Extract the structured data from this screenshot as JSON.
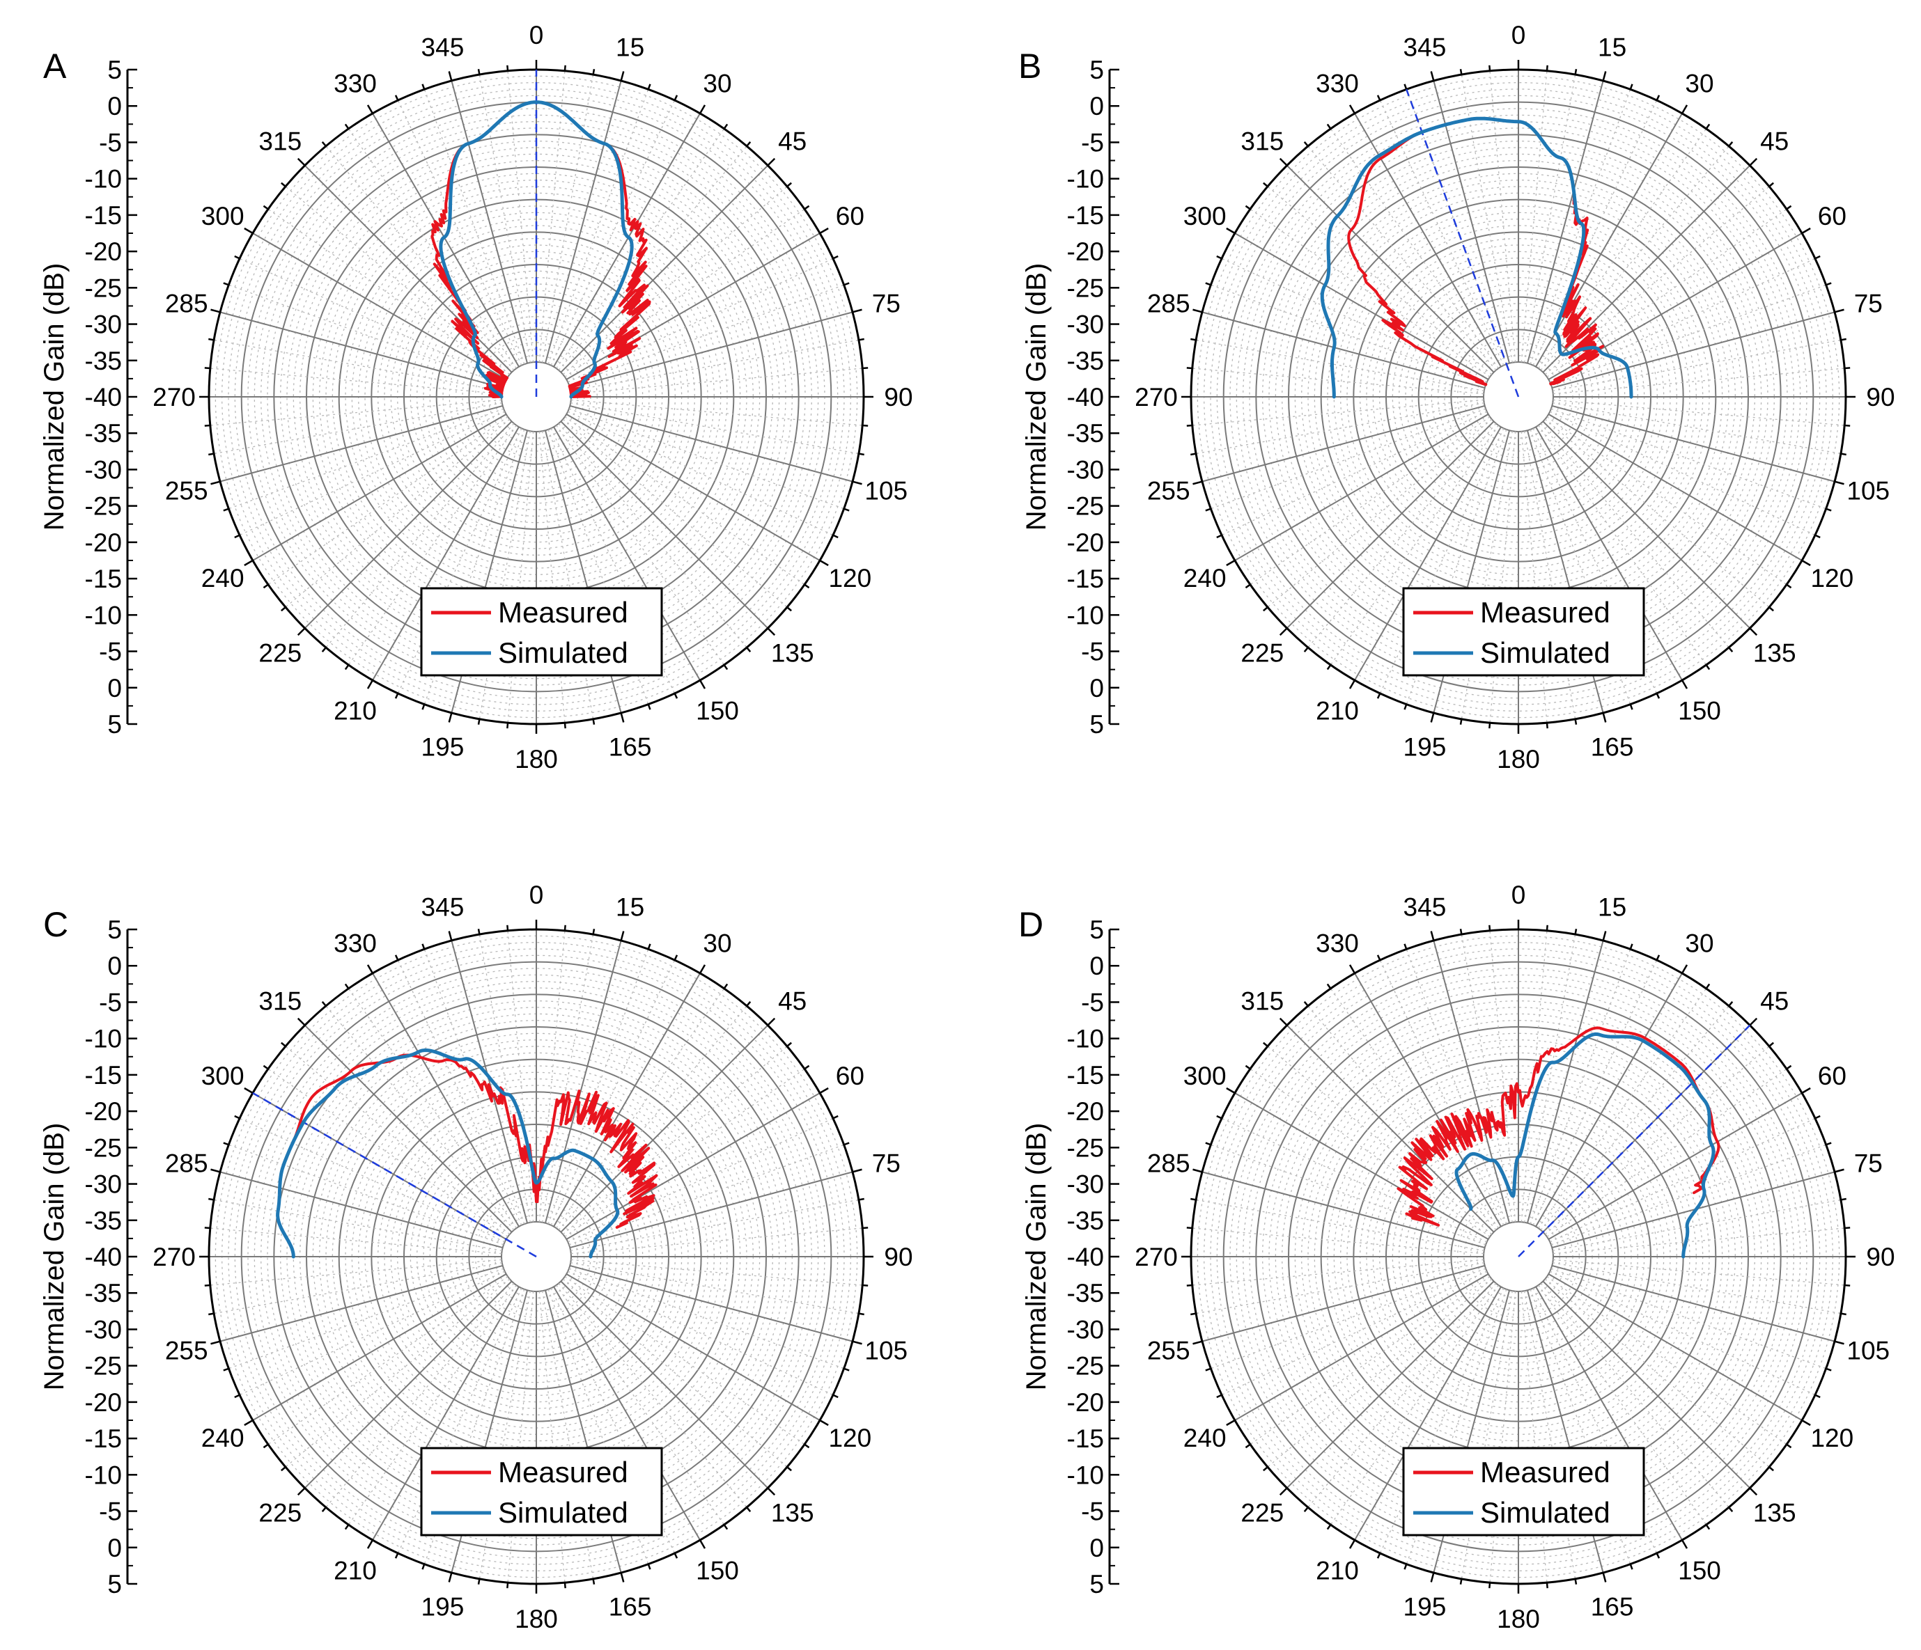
{
  "figure": {
    "colors": {
      "measured": "#e8141e",
      "simulated": "#1f78b4",
      "steer_line": "#1e3cdc",
      "grid_major": "#7a7a7a",
      "grid_minor": "#b8b8b8",
      "axis": "#000000"
    }
  },
  "chart_data": [
    {
      "type": "line",
      "subtype": "polar",
      "panel_label": "A",
      "ylabel": "Normalized Gain (dB)",
      "radial_range_db": [
        -40,
        5
      ],
      "radial_tick_labels": [
        "5",
        "0",
        "-5",
        "-10",
        "-15",
        "-20",
        "-25",
        "-30",
        "-35",
        "-40",
        "-35",
        "-30",
        "-25",
        "-20",
        "-15",
        "-10",
        "-5",
        "0",
        "5"
      ],
      "angle_tick_labels": [
        "0",
        "15",
        "30",
        "45",
        "60",
        "75",
        "90",
        "105",
        "120",
        "135",
        "150",
        "165",
        "180",
        "195",
        "210",
        "225",
        "240",
        "255",
        "270",
        "285",
        "300",
        "315",
        "330",
        "345"
      ],
      "steering_angle_deg": 0,
      "legend": {
        "position": "bottom-center",
        "entries": [
          "Measured",
          "Simulated"
        ]
      },
      "series": [
        {
          "name": "Measured",
          "theta_deg": [
            -90,
            -75,
            -60,
            -45,
            -30,
            -15,
            0,
            15,
            30,
            45,
            60,
            75,
            90
          ],
          "gain_db": [
            -40,
            -40,
            -40,
            -30,
            -15,
            -5,
            0,
            -5,
            -15,
            -24,
            -30,
            -40,
            -40
          ],
          "noise_db": 3
        },
        {
          "name": "Simulated",
          "theta_deg": [
            -90,
            -75,
            -60,
            -45,
            -30,
            -15,
            0,
            15,
            30,
            45,
            60,
            75,
            90
          ],
          "gain_db": [
            -40,
            -38,
            -35,
            -32,
            -17,
            -5,
            0,
            -5,
            -17,
            -32,
            -35,
            -38,
            -40
          ],
          "noise_db": 0
        }
      ]
    },
    {
      "type": "line",
      "subtype": "polar",
      "panel_label": "B",
      "ylabel": "Normalized Gain (dB)",
      "radial_range_db": [
        -40,
        5
      ],
      "radial_tick_labels": [
        "5",
        "0",
        "-5",
        "-10",
        "-15",
        "-20",
        "-25",
        "-30",
        "-35",
        "-40",
        "-35",
        "-30",
        "-25",
        "-20",
        "-15",
        "-10",
        "-5",
        "0",
        "5"
      ],
      "angle_tick_labels": [
        "0",
        "15",
        "30",
        "45",
        "60",
        "75",
        "90",
        "105",
        "120",
        "135",
        "150",
        "165",
        "180",
        "195",
        "210",
        "225",
        "240",
        "255",
        "270",
        "285",
        "300",
        "315",
        "330",
        "345"
      ],
      "steering_angle_deg": -20,
      "legend": {
        "position": "bottom-center",
        "entries": [
          "Measured",
          "Simulated"
        ]
      },
      "series": [
        {
          "name": "Measured",
          "theta_deg": [
            -70,
            -60,
            -45,
            -30,
            -20,
            -10,
            0,
            10,
            20,
            30,
            45,
            60,
            70
          ],
          "gain_db": [
            -40,
            -24,
            -9,
            -3,
            -2,
            -2,
            -3,
            -8,
            -17,
            -30,
            -32,
            -33,
            -40
          ],
          "noise_db": 3
        },
        {
          "name": "Simulated",
          "theta_deg": [
            -90,
            -75,
            -60,
            -45,
            -30,
            -20,
            -10,
            0,
            10,
            20,
            30,
            45,
            60,
            75,
            90
          ],
          "gain_db": [
            -17,
            -16,
            -11,
            -6,
            -2.5,
            -2,
            -2,
            -3,
            -8,
            -17,
            -34,
            -36,
            -31,
            -28,
            -28
          ],
          "noise_db": 0
        }
      ]
    },
    {
      "type": "line",
      "subtype": "polar",
      "panel_label": "C",
      "ylabel": "Normalized Gain (dB)",
      "radial_range_db": [
        -40,
        5
      ],
      "radial_tick_labels": [
        "5",
        "0",
        "-5",
        "-10",
        "-15",
        "-20",
        "-25",
        "-30",
        "-35",
        "-40",
        "-35",
        "-30",
        "-25",
        "-20",
        "-15",
        "-10",
        "-5",
        "0",
        "5"
      ],
      "angle_tick_labels": [
        "0",
        "15",
        "30",
        "45",
        "60",
        "75",
        "90",
        "105",
        "120",
        "135",
        "150",
        "165",
        "180",
        "195",
        "210",
        "225",
        "240",
        "255",
        "270",
        "285",
        "300",
        "315",
        "330",
        "345"
      ],
      "steering_angle_deg": -60,
      "legend": {
        "position": "bottom-center",
        "entries": [
          "Measured",
          "Simulated"
        ]
      },
      "series": [
        {
          "name": "Measured",
          "theta_deg": [
            -65,
            -55,
            -45,
            -35,
            -25,
            -15,
            -5,
            0,
            10,
            20,
            30,
            45,
            60,
            70
          ],
          "gain_db": [
            -4,
            -3,
            -5,
            -8,
            -12,
            -19,
            -30,
            -35,
            -22,
            -21,
            -22,
            -24,
            -26,
            -30
          ],
          "noise_db": 3
        },
        {
          "name": "Simulated",
          "theta_deg": [
            -90,
            -80,
            -70,
            -60,
            -50,
            -40,
            -30,
            -20,
            -10,
            0,
            10,
            20,
            30,
            45,
            60,
            75,
            90
          ],
          "gain_db": [
            -8,
            -5,
            -4,
            -4,
            -5,
            -7,
            -9,
            -13,
            -20,
            -34,
            -30,
            -28,
            -28,
            -29,
            -31,
            -36,
            -37
          ],
          "noise_db": 0
        }
      ]
    },
    {
      "type": "line",
      "subtype": "polar",
      "panel_label": "D",
      "ylabel": "Normalized Gain (dB)",
      "radial_range_db": [
        -40,
        5
      ],
      "radial_tick_labels": [
        "5",
        "0",
        "-5",
        "-10",
        "-15",
        "-20",
        "-25",
        "-30",
        "-35",
        "-40",
        "-35",
        "-30",
        "-25",
        "-20",
        "-15",
        "-10",
        "-5",
        "0",
        "5"
      ],
      "angle_tick_labels": [
        "0",
        "15",
        "30",
        "45",
        "60",
        "75",
        "90",
        "105",
        "120",
        "135",
        "150",
        "165",
        "180",
        "195",
        "210",
        "225",
        "240",
        "255",
        "270",
        "285",
        "300",
        "315",
        "330",
        "345"
      ],
      "steering_angle_deg": 45,
      "legend": {
        "position": "bottom-center",
        "entries": [
          "Measured",
          "Simulated"
        ]
      },
      "series": [
        {
          "name": "Measured",
          "theta_deg": [
            -70,
            -60,
            -50,
            -40,
            -30,
            -20,
            -10,
            0,
            10,
            20,
            30,
            40,
            50,
            60,
            70
          ],
          "gain_db": [
            -30,
            -27,
            -25,
            -24,
            -24,
            -24,
            -25,
            -21,
            -13,
            -8,
            -6.5,
            -6.5,
            -8,
            -10,
            -16
          ],
          "noise_db": 3
        },
        {
          "name": "Simulated",
          "theta_deg": [
            -45,
            -35,
            -25,
            -15,
            -5,
            0,
            10,
            20,
            30,
            40,
            50,
            60,
            70,
            80,
            90
          ],
          "gain_db": [
            -35,
            -29,
            -28,
            -30,
            -36,
            -30,
            -15,
            -9,
            -7,
            -7,
            -8,
            -11,
            -15,
            -19,
            -20
          ],
          "noise_db": 0
        }
      ]
    }
  ]
}
